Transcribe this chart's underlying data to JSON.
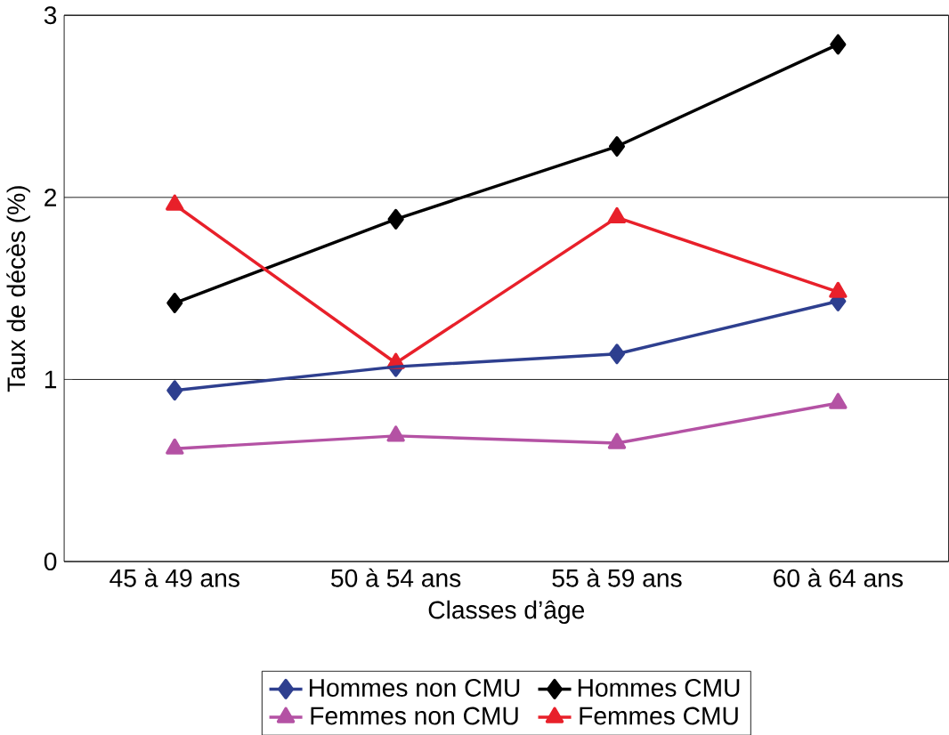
{
  "chart_data": {
    "type": "line",
    "xlabel": "Classes d’âge",
    "ylabel": "Taux de décès (%)",
    "categories": [
      "45 à 49 ans",
      "50 à 54 ans",
      "55 à 59 ans",
      "60 à 64 ans"
    ],
    "ylim": [
      0,
      3
    ],
    "yticks": [
      0,
      1,
      2,
      3
    ],
    "grid": "y",
    "legend": "bottom",
    "series": [
      {
        "name": "Hommes non CMU",
        "color": "#2e3f8f",
        "marker": "diamond",
        "values": [
          0.94,
          1.07,
          1.14,
          1.43
        ]
      },
      {
        "name": "Hommes CMU",
        "color": "#000000",
        "marker": "diamond",
        "values": [
          1.42,
          1.88,
          2.28,
          2.84
        ]
      },
      {
        "name": "Femmes non CMU",
        "color": "#b452a4",
        "marker": "triangle",
        "values": [
          0.62,
          0.69,
          0.65,
          0.87
        ]
      },
      {
        "name": "Femmes CMU",
        "color": "#e8202a",
        "marker": "triangle",
        "values": [
          1.96,
          1.09,
          1.89,
          1.48
        ]
      }
    ]
  }
}
